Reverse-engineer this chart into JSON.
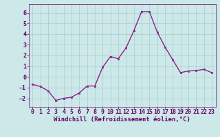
{
  "x": [
    0,
    1,
    2,
    3,
    4,
    5,
    6,
    7,
    8,
    9,
    10,
    11,
    12,
    13,
    14,
    15,
    16,
    17,
    18,
    19,
    20,
    21,
    22,
    23
  ],
  "y": [
    -0.7,
    -0.9,
    -1.3,
    -2.2,
    -2.0,
    -1.9,
    -1.5,
    -0.85,
    -0.85,
    0.9,
    1.9,
    1.7,
    2.7,
    4.3,
    6.1,
    6.1,
    4.2,
    2.8,
    1.6,
    0.4,
    0.55,
    0.6,
    0.7,
    0.4
  ],
  "line_color": "#882288",
  "marker": "s",
  "marker_size": 2.0,
  "background_color": "#cce8e8",
  "grid_color": "#aacccc",
  "xlabel": "Windchill (Refroidissement éolien,°C)",
  "ylabel": "",
  "xlim": [
    -0.5,
    23.5
  ],
  "ylim": [
    -2.8,
    6.8
  ],
  "yticks": [
    -2,
    -1,
    0,
    1,
    2,
    3,
    4,
    5,
    6
  ],
  "xticks": [
    0,
    1,
    2,
    3,
    4,
    5,
    6,
    7,
    8,
    9,
    10,
    11,
    12,
    13,
    14,
    15,
    16,
    17,
    18,
    19,
    20,
    21,
    22,
    23
  ],
  "xlabel_color": "#660066",
  "tick_color": "#660066",
  "spine_color": "#660066",
  "line_width": 1.0,
  "xlabel_fontsize": 6.5,
  "tick_fontsize": 6.0
}
